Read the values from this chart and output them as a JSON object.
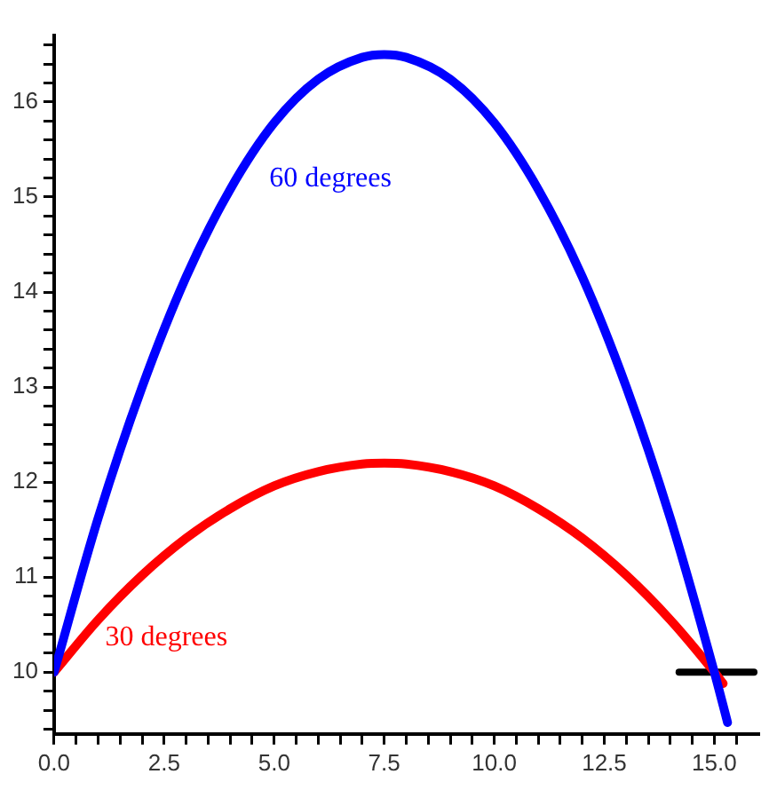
{
  "chart_data": {
    "type": "line",
    "xlim": [
      0,
      16
    ],
    "ylim": [
      9.35,
      16.7
    ],
    "xticks": [
      {
        "value": 0,
        "label": "0.0"
      },
      {
        "value": 0.5,
        "label": null
      },
      {
        "value": 1,
        "label": null
      },
      {
        "value": 1.5,
        "label": null
      },
      {
        "value": 2,
        "label": null
      },
      {
        "value": 2.5,
        "label": "2.5"
      },
      {
        "value": 3,
        "label": null
      },
      {
        "value": 3.5,
        "label": null
      },
      {
        "value": 4,
        "label": null
      },
      {
        "value": 4.5,
        "label": null
      },
      {
        "value": 5,
        "label": "5.0"
      },
      {
        "value": 5.5,
        "label": null
      },
      {
        "value": 6,
        "label": null
      },
      {
        "value": 6.5,
        "label": null
      },
      {
        "value": 7,
        "label": null
      },
      {
        "value": 7.5,
        "label": "7.5"
      },
      {
        "value": 8,
        "label": null
      },
      {
        "value": 8.5,
        "label": null
      },
      {
        "value": 9,
        "label": null
      },
      {
        "value": 9.5,
        "label": null
      },
      {
        "value": 10,
        "label": "10.0"
      },
      {
        "value": 10.5,
        "label": null
      },
      {
        "value": 11,
        "label": null
      },
      {
        "value": 11.5,
        "label": null
      },
      {
        "value": 12,
        "label": null
      },
      {
        "value": 12.5,
        "label": "12.5"
      },
      {
        "value": 13,
        "label": null
      },
      {
        "value": 13.5,
        "label": null
      },
      {
        "value": 14,
        "label": null
      },
      {
        "value": 14.5,
        "label": null
      },
      {
        "value": 15,
        "label": "15.0"
      },
      {
        "value": 15.5,
        "label": null
      }
    ],
    "yticks": [
      {
        "value": 9.4,
        "label": null
      },
      {
        "value": 9.6,
        "label": null
      },
      {
        "value": 9.8,
        "label": null
      },
      10,
      {
        "value": 10.2,
        "label": null
      },
      {
        "value": 10.4,
        "label": null
      },
      {
        "value": 10.6,
        "label": null
      },
      {
        "value": 10.8,
        "label": null
      },
      11,
      {
        "value": 11.2,
        "label": null
      },
      {
        "value": 11.4,
        "label": null
      },
      {
        "value": 11.6,
        "label": null
      },
      {
        "value": 11.8,
        "label": null
      },
      12,
      {
        "value": 12.2,
        "label": null
      },
      {
        "value": 12.4,
        "label": null
      },
      {
        "value": 12.6,
        "label": null
      },
      {
        "value": 12.8,
        "label": null
      },
      13,
      {
        "value": 13.2,
        "label": null
      },
      {
        "value": 13.4,
        "label": null
      },
      {
        "value": 13.6,
        "label": null
      },
      {
        "value": 13.8,
        "label": null
      },
      14,
      {
        "value": 14.2,
        "label": null
      },
      {
        "value": 14.4,
        "label": null
      },
      {
        "value": 14.6,
        "label": null
      },
      {
        "value": 14.8,
        "label": null
      },
      15,
      {
        "value": 15.2,
        "label": null
      },
      {
        "value": 15.4,
        "label": null
      },
      {
        "value": 15.6,
        "label": null
      },
      {
        "value": 15.8,
        "label": null
      },
      16,
      {
        "value": 16.2,
        "label": null
      },
      {
        "value": 16.4,
        "label": null
      },
      {
        "value": 16.6,
        "label": null
      }
    ],
    "grid": false,
    "legend": false,
    "marker": "none",
    "line_style": "solid",
    "series": [
      {
        "name": "60 degrees",
        "color": "#0000ff",
        "x": [
          0,
          1,
          2,
          3,
          4,
          5,
          6,
          7,
          7.5,
          8,
          9,
          10,
          11,
          12,
          13,
          14,
          15,
          15.3
        ],
        "values": [
          10,
          11.62,
          13.0,
          14.16,
          15.08,
          15.78,
          16.24,
          16.47,
          16.5,
          16.47,
          16.24,
          15.78,
          15.08,
          14.16,
          13.0,
          11.62,
          10.0,
          9.47
        ]
      },
      {
        "name": "30 degrees",
        "color": "#ff0000",
        "x": [
          0,
          1,
          2,
          3,
          4,
          5,
          6,
          7,
          7.5,
          8,
          9,
          10,
          11,
          12,
          13,
          14,
          15,
          15.2
        ],
        "values": [
          10,
          10.55,
          11.02,
          11.41,
          11.72,
          11.96,
          12.11,
          12.19,
          12.2,
          12.19,
          12.11,
          11.96,
          11.72,
          11.41,
          11.02,
          10.55,
          10.0,
          9.88
        ]
      },
      {
        "color": "#000000",
        "x": [
          14.2,
          15.9
        ],
        "values": [
          10,
          10
        ]
      }
    ]
  }
}
